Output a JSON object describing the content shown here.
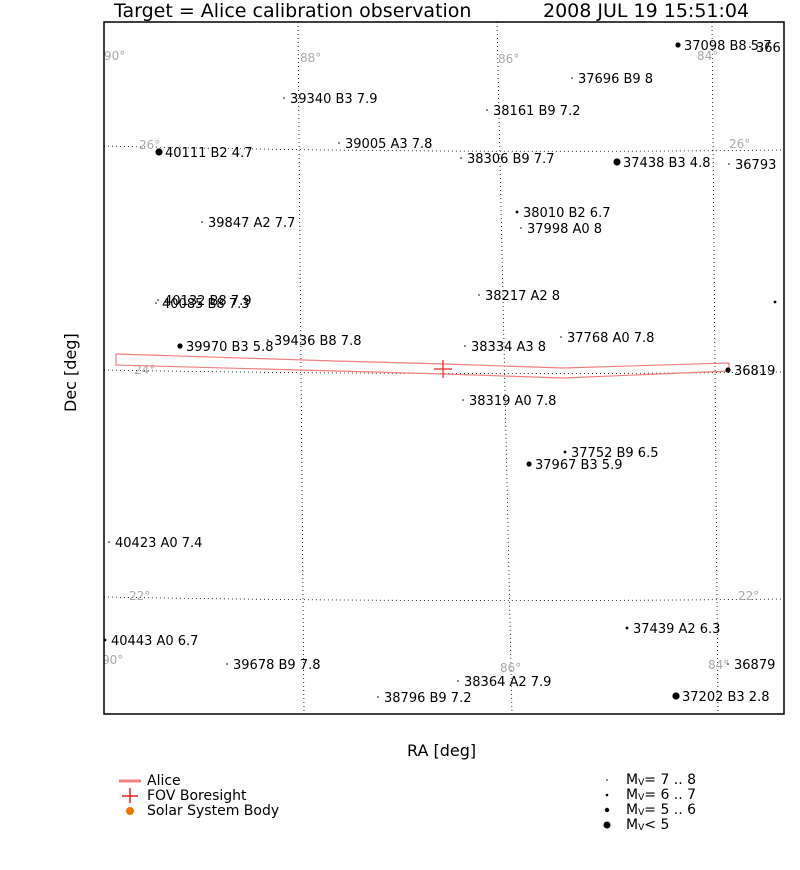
{
  "header": {
    "title": "Target = Alice calibration observation",
    "timestamp": "2008 JUL 19 15:51:04"
  },
  "axes": {
    "xlabel": "RA [deg]",
    "ylabel": "Dec [deg]"
  },
  "grid": {
    "ra_labels": [
      "90°",
      "88°",
      "86°",
      "84°",
      "86°",
      "84°",
      "90°"
    ],
    "dec_labels": [
      "26°",
      "26°",
      "24°",
      "22°",
      "22°"
    ]
  },
  "legend_left": [
    {
      "label": "Alice",
      "color": "#f08080"
    },
    {
      "label": "FOV Boresight",
      "color": "#e8201c"
    },
    {
      "label": "Solar System Body",
      "color": "#f07800"
    }
  ],
  "legend_right": [
    {
      "prefix": "M",
      "sub": "V",
      "range": " = 7 .. 8"
    },
    {
      "prefix": "M",
      "sub": "V",
      "range": " = 6 .. 7"
    },
    {
      "prefix": "M",
      "sub": "V",
      "range": " = 5 .. 6"
    },
    {
      "prefix": "M",
      "sub": "V",
      "range": " < 5"
    }
  ],
  "stars": [
    {
      "label": "37098 B8 5.7",
      "mag": 5.7
    },
    {
      "label": "366",
      "mag": 7.5
    },
    {
      "label": "37696 B9 8",
      "mag": 8.0
    },
    {
      "label": "39340 B3 7.9",
      "mag": 7.9
    },
    {
      "label": "38161 B9 7.2",
      "mag": 7.2
    },
    {
      "label": "40111 B2 4.7",
      "mag": 4.7
    },
    {
      "label": "39005 A3 7.8",
      "mag": 7.8
    },
    {
      "label": "38306 B9 7.7",
      "mag": 7.7
    },
    {
      "label": "37438 B3 4.8",
      "mag": 4.8
    },
    {
      "label": "36793",
      "mag": 7.5
    },
    {
      "label": "38010 B2 6.7",
      "mag": 6.7
    },
    {
      "label": "39847 A2 7.7",
      "mag": 7.7
    },
    {
      "label": "37998 A0 8",
      "mag": 8.0
    },
    {
      "label": "40132 B8 7.9",
      "mag": 7.9
    },
    {
      "label": "40085 B8 7.3",
      "mag": 7.3
    },
    {
      "label": "38217 A2 8",
      "mag": 8.0
    },
    {
      "label": "39970 B3 5.8",
      "mag": 5.8
    },
    {
      "label": "39436 B8 7.8",
      "mag": 7.8
    },
    {
      "label": "38334 A3 8",
      "mag": 8.0
    },
    {
      "label": "37768 A0 7.8",
      "mag": 7.8
    },
    {
      "label": "36819",
      "mag": 5.5
    },
    {
      "label": "38319 A0 7.8",
      "mag": 7.8
    },
    {
      "label": "37752 B9 6.5",
      "mag": 6.5
    },
    {
      "label": "37967 B3 5.9",
      "mag": 5.9
    },
    {
      "label": "40423 A0 7.4",
      "mag": 7.4
    },
    {
      "label": "40443 A0 6.7",
      "mag": 6.7
    },
    {
      "label": "37439 A2 6.3",
      "mag": 6.3
    },
    {
      "label": "39678 B9 7.8",
      "mag": 7.8
    },
    {
      "label": "38364 A2 7.9",
      "mag": 7.9
    },
    {
      "label": "36879",
      "mag": 7.5
    },
    {
      "label": "37202 B3 2.8",
      "mag": 2.8
    },
    {
      "label": "38796 B9 7.2",
      "mag": 7.2
    },
    {
      "label": "",
      "mag": 6.5
    }
  ]
}
